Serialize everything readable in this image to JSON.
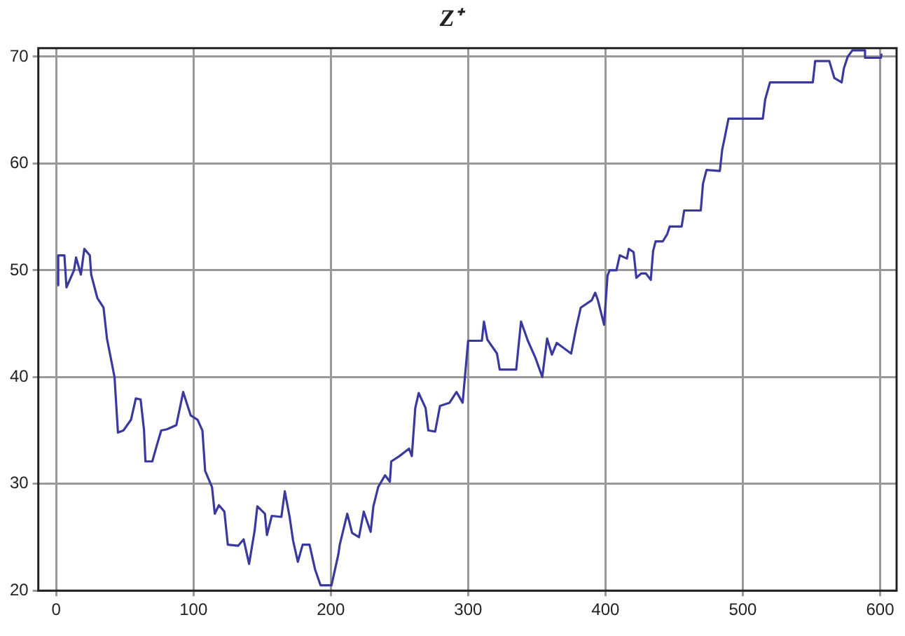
{
  "chart_data": {
    "type": "line",
    "title": "Z⁺",
    "xlim": [
      -13,
      612
    ],
    "ylim": [
      20,
      70.8
    ],
    "xticks": [
      0,
      100,
      200,
      300,
      400,
      500,
      600
    ],
    "yticks": [
      20,
      30,
      40,
      50,
      60,
      70
    ],
    "grid": true,
    "legend": false,
    "marker": "none",
    "line_style": "solid",
    "series": [
      {
        "color": "#3a3a9e",
        "x": [
          1,
          1.5,
          6,
          7.5,
          13,
          14.5,
          18,
          20.5,
          24.5,
          25.5,
          30,
          34.5,
          37,
          42.5,
          45,
          49,
          54.5,
          58,
          61.5,
          64,
          65,
          70,
          73.5,
          76.5,
          80.5,
          87.5,
          92.5,
          98,
          103,
          106.5,
          108.5,
          113.5,
          115.5,
          118.5,
          122.5,
          125,
          132.5,
          136.5,
          140.5,
          144.5,
          146.5,
          152,
          153.5,
          157,
          164,
          166.5,
          170,
          172.5,
          176,
          179.5,
          184.5,
          188.5,
          192.5,
          200.5,
          205.5,
          206.5,
          212,
          215.5,
          220.5,
          224,
          229,
          231,
          234.5,
          239.5,
          243,
          244,
          250,
          257,
          259,
          261.5,
          264,
          269,
          271,
          276,
          279.5,
          286.5,
          291.5,
          296,
          300,
          310,
          311.5,
          314,
          321,
          323,
          335,
          338.5,
          343.5,
          349,
          354,
          357.5,
          361,
          364.5,
          375,
          378.5,
          382,
          390,
          392.5,
          394.5,
          399,
          401.5,
          403,
          408,
          410.4,
          415.6,
          417,
          420.5,
          422.5,
          426,
          429.5,
          433,
          434.7,
          436.5,
          441.7,
          445,
          446.8,
          455.5,
          457.3,
          469.4,
          471,
          473.6,
          483.3,
          485,
          486.8,
          489.6,
          514.6,
          516.3,
          519.8,
          551,
          552.7,
          563,
          566.7,
          572,
          573.6,
          576.4,
          579.8,
          589,
          589,
          600.6,
          601
        ],
        "values": [
          48.6,
          51.4,
          51.4,
          48.4,
          50,
          51.2,
          49.6,
          52,
          51.4,
          49.6,
          47.4,
          46.5,
          43.6,
          40,
          34.8,
          35,
          36,
          38,
          37.9,
          35,
          32.1,
          32.1,
          33.7,
          35,
          35.1,
          35.5,
          38.6,
          36.4,
          36,
          35,
          31.2,
          29.7,
          27.2,
          28,
          27.4,
          24.3,
          24.2,
          24.8,
          22.5,
          25.6,
          27.9,
          27.2,
          25.2,
          27,
          26.9,
          29.3,
          26.9,
          24.7,
          22.7,
          24.3,
          24.3,
          22,
          20.5,
          20.5,
          23.4,
          24.3,
          27.2,
          25.4,
          25,
          27.4,
          25.5,
          27.9,
          29.7,
          30.8,
          30.2,
          32.1,
          32.6,
          33.3,
          32.6,
          37.1,
          38.5,
          37.1,
          35,
          34.9,
          37.3,
          37.6,
          38.6,
          37.6,
          43.4,
          43.4,
          45.2,
          43.5,
          42.2,
          40.7,
          40.7,
          45.2,
          43.4,
          41.8,
          40,
          43.6,
          42.1,
          43.2,
          42.2,
          44.5,
          46.5,
          47.2,
          47.9,
          47.2,
          44.9,
          49.5,
          50,
          50,
          51.4,
          51.1,
          52,
          51.7,
          49.3,
          49.7,
          49.7,
          49.1,
          51.8,
          52.7,
          52.7,
          53.4,
          54.1,
          54.1,
          55.6,
          55.6,
          58.1,
          59.4,
          59.3,
          61.3,
          62.4,
          64.2,
          64.2,
          66,
          67.6,
          67.6,
          69.6,
          69.6,
          68,
          67.6,
          68.9,
          70,
          70.6,
          70.6,
          69.9,
          69.9,
          70.3
        ]
      }
    ]
  }
}
